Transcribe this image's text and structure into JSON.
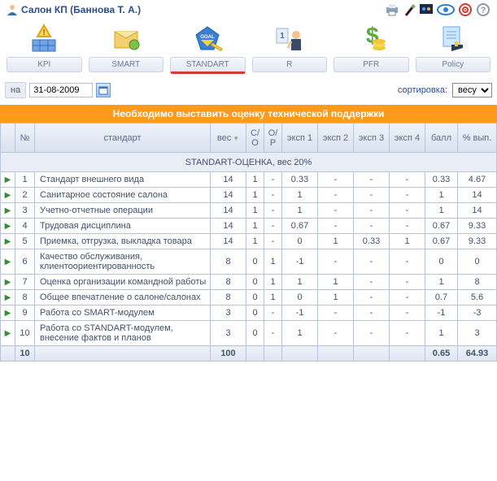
{
  "header": {
    "title": "Салон КП  (Баннова Т. А.)"
  },
  "toolbar": {
    "items": [
      {
        "label": "KPI"
      },
      {
        "label": "SMART"
      },
      {
        "label": "STANDART"
      },
      {
        "label": "R"
      },
      {
        "label": "PFR"
      },
      {
        "label": "Policy"
      }
    ],
    "active_index": 2
  },
  "controls": {
    "date_prefix": "на",
    "date_value": "31-08-2009",
    "sort_label": "сортировка:",
    "sort_value": "весу"
  },
  "banner": "Необходимо выставить оценку технической поддержки",
  "table": {
    "columns": {
      "num": "№",
      "name": "стандарт",
      "weight": "вес",
      "so": "С/О",
      "op": "О/Р",
      "e1": "эксп 1",
      "e2": "эксп 2",
      "e3": "эксп 3",
      "e4": "эксп 4",
      "ball": "балл",
      "pct": "% вып."
    },
    "group_title": "STANDART-ОЦЕНКА, вес 20%",
    "rows": [
      {
        "n": "1",
        "name": "Стандарт внешнего вида",
        "w": "14",
        "so": "1",
        "op": "-",
        "e1": "0.33",
        "e2": "-",
        "e3": "-",
        "e4": "-",
        "ball": "0.33",
        "pct": "4.67"
      },
      {
        "n": "2",
        "name": "Санитарное состояние салона",
        "w": "14",
        "so": "1",
        "op": "-",
        "e1": "1",
        "e2": "-",
        "e3": "-",
        "e4": "-",
        "ball": "1",
        "pct": "14"
      },
      {
        "n": "3",
        "name": "Учетно-отчетные операции",
        "w": "14",
        "so": "1",
        "op": "-",
        "e1": "1",
        "e2": "-",
        "e3": "-",
        "e4": "-",
        "ball": "1",
        "pct": "14"
      },
      {
        "n": "4",
        "name": "Трудовая дисциплина",
        "w": "14",
        "so": "1",
        "op": "-",
        "e1": "0.67",
        "e2": "-",
        "e3": "-",
        "e4": "-",
        "ball": "0.67",
        "pct": "9.33"
      },
      {
        "n": "5",
        "name": "Приемка, отгрузка, выкладка товара",
        "w": "14",
        "so": "1",
        "op": "-",
        "e1": "0",
        "e2": "1",
        "e3": "0.33",
        "e4": "1",
        "ball": "0.67",
        "pct": "9.33"
      },
      {
        "n": "6",
        "name": "Качество обслуживания, клиентоориентированность",
        "w": "8",
        "so": "0",
        "op": "1",
        "e1": "-1",
        "e2": "-",
        "e3": "-",
        "e4": "-",
        "ball": "0",
        "pct": "0"
      },
      {
        "n": "7",
        "name": "Оценка организации командной работы",
        "w": "8",
        "so": "0",
        "op": "1",
        "e1": "1",
        "e2": "1",
        "e3": "-",
        "e4": "-",
        "ball": "1",
        "pct": "8"
      },
      {
        "n": "8",
        "name": "Общее впечатление о салоне/салонах",
        "w": "8",
        "so": "0",
        "op": "1",
        "e1": "0",
        "e2": "1",
        "e3": "-",
        "e4": "-",
        "ball": "0.7",
        "pct": "5.6"
      },
      {
        "n": "9",
        "name": "Работа со SMART-модулем",
        "w": "3",
        "so": "0",
        "op": "-",
        "e1": "-1",
        "e2": "-",
        "e3": "-",
        "e4": "-",
        "ball": "-1",
        "pct": "-3"
      },
      {
        "n": "10",
        "name": "Работа со STANDART-модулем, внесение фактов и планов",
        "w": "3",
        "so": "0",
        "op": "-",
        "e1": "1",
        "e2": "-",
        "e3": "-",
        "e4": "-",
        "ball": "1",
        "pct": "3"
      }
    ],
    "footer": {
      "count": "10",
      "weight": "100",
      "ball": "0.65",
      "pct": "64.93"
    }
  },
  "colors": {
    "banner_bg": "#ff9a1f",
    "header_grad_top": "#eef2f9",
    "header_grad_bot": "#d9e1ef",
    "border": "#b9c3d6",
    "active_tab": "#d43a2f"
  }
}
